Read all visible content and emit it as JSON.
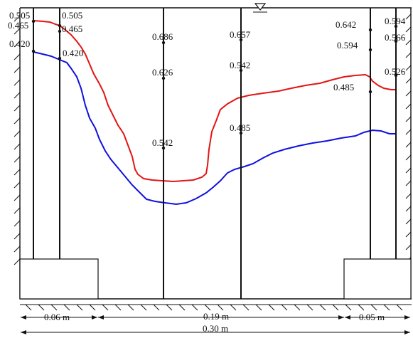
{
  "poles": [
    {
      "id": "pole-1",
      "labels": [
        "0.505",
        "0.465",
        "0.420"
      ]
    },
    {
      "id": "pole-2",
      "labels": [
        "0.505",
        "0.465",
        "0.420"
      ]
    },
    {
      "id": "pole-3",
      "labels": [
        "0.686",
        "0.626",
        "0.542"
      ]
    },
    {
      "id": "pole-4",
      "labels": [
        "0.657",
        "0.542",
        "0.485"
      ]
    },
    {
      "id": "pole-5",
      "labels": [
        "0.642",
        "0.594",
        "0.485"
      ]
    },
    {
      "id": "pole-6",
      "labels": [
        "0.594",
        "0.566",
        "0.526"
      ]
    }
  ],
  "dimensions": {
    "left_span": "0.06 m",
    "middle_span": "0.19 m",
    "right_span": "0.05 m",
    "total_span": "0.30 m"
  },
  "colors": {
    "red_profile": "#e41414",
    "blue_profile": "#1010e0"
  },
  "icons": {
    "water_level": "water-surface-triangle-icon"
  }
}
